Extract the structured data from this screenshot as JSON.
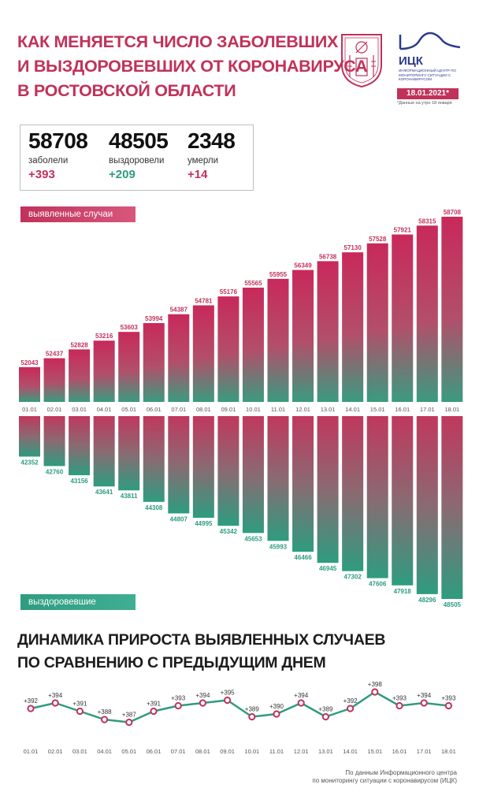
{
  "header": {
    "title_lines": [
      "Как меняется число заболевших",
      "и выздоровевших от коронавируса",
      "в Ростовской области"
    ],
    "logo_name": "ИЦК",
    "logo_sub": "ИНФОРМАЦИОННЫЙ ЦЕНТР ПО МОНИТОРИНГУ СИТУАЦИИ С КОРОНАВИРУСОМ",
    "date": "18.01.2021*",
    "date_note": "*Данные на утро 18 января"
  },
  "stats": [
    {
      "value": "58708",
      "label": "заболели",
      "delta": "+393",
      "color": "#c0325a"
    },
    {
      "value": "48505",
      "label": "выздоровели",
      "delta": "+209",
      "color": "#2e9c80"
    },
    {
      "value": "2348",
      "label": "умерли",
      "delta": "+14",
      "color": "#c0325a"
    }
  ],
  "labels": {
    "cases": "выявленные случаи",
    "recovered": "выздоровевшие"
  },
  "subtitle_lines": [
    "Динамика прироста выявленных случаев",
    "по сравнению с предыдущим днем"
  ],
  "credit_lines": [
    "По данным Информационного центра",
    "по мониторингу ситуации с коронавирусом (ИЦК)"
  ],
  "colors": {
    "accent_red": "#c0325a",
    "accent_green": "#2e9c80"
  },
  "chart_data": [
    {
      "type": "bar",
      "categories": [
        "01.01",
        "02.01",
        "03.01",
        "04.01",
        "05.01",
        "06.01",
        "07.01",
        "08.01",
        "09.01",
        "10.01",
        "11.01",
        "12.01",
        "13.01",
        "14.01",
        "15.01",
        "16.01",
        "17.01",
        "18.01"
      ],
      "series": [
        {
          "name": "выявленные случаи",
          "values": [
            52043,
            52437,
            52828,
            53216,
            53603,
            53994,
            54387,
            54781,
            55176,
            55565,
            55955,
            56349,
            56738,
            57130,
            57528,
            57921,
            58315,
            58708
          ]
        },
        {
          "name": "выздоровевшие",
          "values": [
            42352,
            42760,
            43156,
            43641,
            43811,
            44308,
            44807,
            44995,
            45342,
            45653,
            45993,
            46466,
            46945,
            47302,
            47606,
            47918,
            48296,
            48505
          ]
        }
      ]
    },
    {
      "type": "line",
      "x": [
        "01.01",
        "02.01",
        "03.01",
        "04.01",
        "05.01",
        "06.01",
        "07.01",
        "08.01",
        "09.01",
        "10.01",
        "11.01",
        "12.01",
        "13.01",
        "14.01",
        "15.01",
        "16.01",
        "17.01",
        "18.01"
      ],
      "values": [
        392,
        394,
        391,
        388,
        387,
        391,
        393,
        394,
        395,
        389,
        390,
        394,
        389,
        392,
        398,
        393,
        394,
        393
      ],
      "labels": [
        "+392",
        "+394",
        "+391",
        "+388",
        "+387",
        "+391",
        "+393",
        "+394",
        "+395",
        "+389",
        "+390",
        "+394",
        "+389",
        "+392",
        "+398",
        "+393",
        "+394",
        "+393"
      ]
    }
  ]
}
